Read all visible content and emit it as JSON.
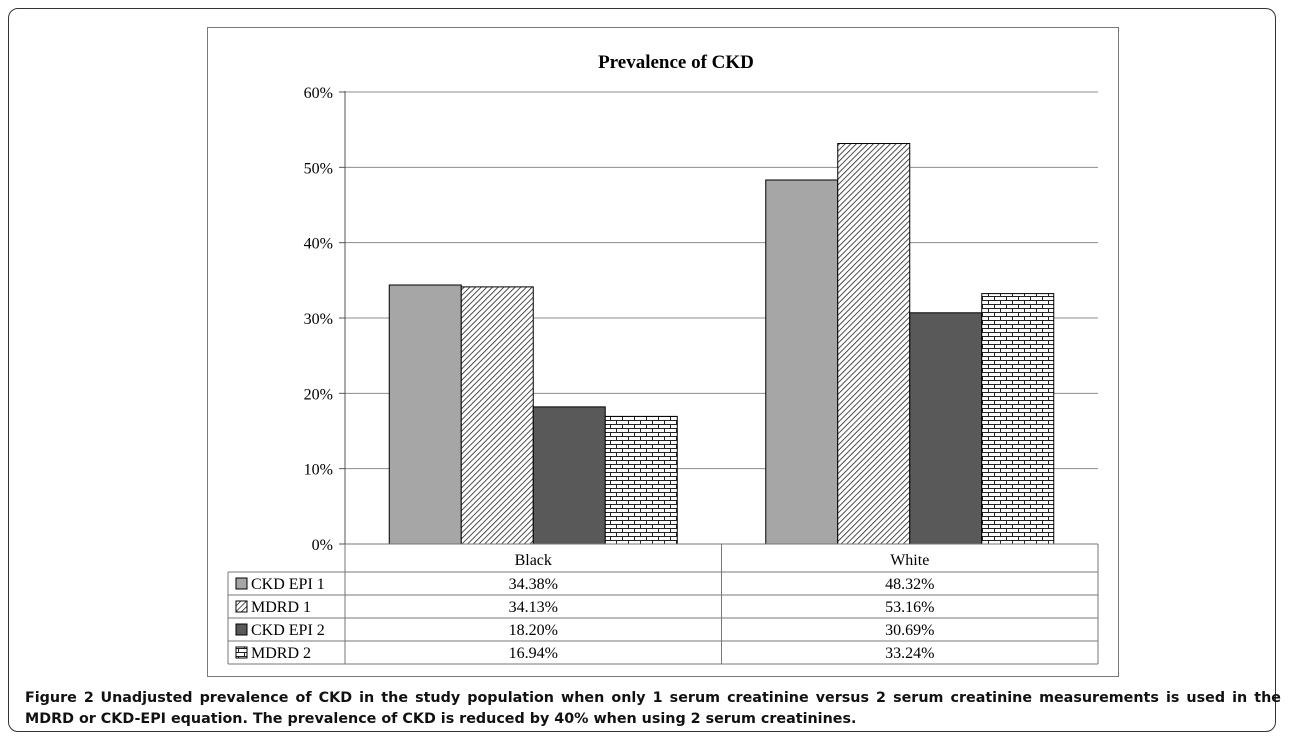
{
  "chart_data": {
    "type": "bar",
    "title": "Prevalence of CKD",
    "categories": [
      "Black",
      "White"
    ],
    "series": [
      {
        "name": "CKD EPI 1",
        "values": [
          34.38,
          48.32
        ],
        "labels": [
          "34.38%",
          "48.32%"
        ],
        "pattern": "solid-light",
        "color": "#a6a6a6"
      },
      {
        "name": "MDRD 1",
        "values": [
          34.13,
          53.16
        ],
        "labels": [
          "34.13%",
          "53.16%"
        ],
        "pattern": "diagonal-hatch",
        "color": "#ffffff"
      },
      {
        "name": "CKD EPI 2",
        "values": [
          18.2,
          30.69
        ],
        "labels": [
          "18.20%",
          "30.69%"
        ],
        "pattern": "solid-dark",
        "color": "#595959"
      },
      {
        "name": "MDRD 2",
        "values": [
          16.94,
          33.24
        ],
        "labels": [
          "16.94%",
          "33.24%"
        ],
        "pattern": "brick",
        "color": "#ffffff"
      }
    ],
    "yticks": [
      "0%",
      "10%",
      "20%",
      "30%",
      "40%",
      "50%",
      "60%"
    ],
    "ylim": [
      0,
      60
    ],
    "grid": true,
    "legend": "data-table"
  },
  "caption": {
    "lead": "Figure 2",
    "text": "Unadjusted prevalence of CKD in the study population when only 1 serum creatinine versus 2 serum creatinine measurements is used in the MDRD or CKD-EPI equation. The prevalence of CKD is reduced by 40% when using 2 serum creatinines."
  }
}
